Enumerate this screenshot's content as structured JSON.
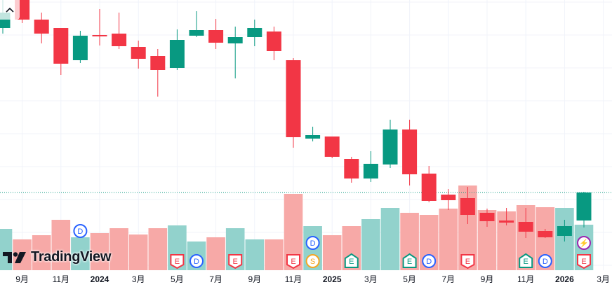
{
  "colors": {
    "up": "#089981",
    "down": "#f23645",
    "vol_up": "#92d2cc",
    "vol_down": "#f7a9a7",
    "grid": "#f0f3fa",
    "last_price": "#089981"
  },
  "chart_data": {
    "type": "candlestick",
    "title": "",
    "note": "price scale not shown; values in relative units",
    "candles": [
      {
        "o": 36.0,
        "h": 40.0,
        "l": 35.2,
        "c": 38.2
      },
      {
        "o": 40.0,
        "h": 40.0,
        "l": 36.7,
        "c": 37.2
      },
      {
        "o": 37.2,
        "h": 38.2,
        "l": 33.8,
        "c": 35.2
      },
      {
        "o": 36.0,
        "h": 36.0,
        "l": 29.3,
        "c": 30.9
      },
      {
        "o": 31.4,
        "h": 35.6,
        "l": 31.0,
        "c": 34.9
      },
      {
        "o": 35.0,
        "h": 38.7,
        "l": 33.5,
        "c": 34.8
      },
      {
        "o": 35.2,
        "h": 38.2,
        "l": 33.0,
        "c": 33.4
      },
      {
        "o": 33.3,
        "h": 34.2,
        "l": 30.2,
        "c": 31.6
      },
      {
        "o": 32.0,
        "h": 33.0,
        "l": 26.2,
        "c": 30.0
      },
      {
        "o": 30.3,
        "h": 35.8,
        "l": 30.0,
        "c": 34.3
      },
      {
        "o": 34.9,
        "h": 38.4,
        "l": 34.7,
        "c": 35.7
      },
      {
        "o": 35.7,
        "h": 37.3,
        "l": 33.0,
        "c": 33.9
      },
      {
        "o": 33.8,
        "h": 36.2,
        "l": 28.8,
        "c": 34.7
      },
      {
        "o": 34.7,
        "h": 37.2,
        "l": 33.4,
        "c": 36.0
      },
      {
        "o": 35.5,
        "h": 36.2,
        "l": 31.4,
        "c": 32.7
      },
      {
        "o": 31.4,
        "h": 31.7,
        "l": 18.9,
        "c": 20.4
      },
      {
        "o": 20.2,
        "h": 21.9,
        "l": 19.8,
        "c": 20.7
      },
      {
        "o": 20.5,
        "h": 20.5,
        "l": 17.4,
        "c": 17.6
      },
      {
        "o": 17.3,
        "h": 17.6,
        "l": 13.9,
        "c": 14.5
      },
      {
        "o": 14.5,
        "h": 18.4,
        "l": 14.0,
        "c": 16.6
      },
      {
        "o": 16.5,
        "h": 22.9,
        "l": 16.0,
        "c": 21.5
      },
      {
        "o": 21.5,
        "h": 22.9,
        "l": 13.5,
        "c": 15.1
      },
      {
        "o": 15.2,
        "h": 16.3,
        "l": 11.1,
        "c": 11.3
      },
      {
        "o": 12.2,
        "h": 13.0,
        "l": 10.0,
        "c": 11.4
      },
      {
        "o": 11.7,
        "h": 13.3,
        "l": 8.0,
        "c": 9.3
      },
      {
        "o": 9.6,
        "h": 10.2,
        "l": 7.6,
        "c": 8.4
      },
      {
        "o": 8.5,
        "h": 10.3,
        "l": 7.8,
        "c": 8.2
      },
      {
        "o": 8.3,
        "h": 10.3,
        "l": 6.0,
        "c": 6.9
      },
      {
        "o": 7.0,
        "h": 7.3,
        "l": 6.0,
        "c": 6.1
      },
      {
        "o": 6.3,
        "h": 8.6,
        "l": 5.5,
        "c": 7.7
      },
      {
        "o": 8.5,
        "h": 12.6,
        "l": 7.5,
        "c": 12.5
      }
    ],
    "volume": [
      59,
      44,
      50,
      72,
      47,
      53,
      60,
      51,
      60,
      64,
      41,
      47,
      60,
      44,
      44,
      109,
      63,
      50,
      63,
      73,
      89,
      82,
      79,
      88,
      121,
      86,
      84,
      93,
      90,
      89,
      65
    ],
    "last_price": 12.5,
    "x_ticks": [
      {
        "i": 1,
        "label": "9月",
        "bold": false
      },
      {
        "i": 3,
        "label": "11月",
        "bold": false
      },
      {
        "i": 5,
        "label": "2024",
        "bold": true
      },
      {
        "i": 7,
        "label": "3月",
        "bold": false
      },
      {
        "i": 9,
        "label": "5月",
        "bold": false
      },
      {
        "i": 11,
        "label": "7月",
        "bold": false
      },
      {
        "i": 13,
        "label": "9月",
        "bold": false
      },
      {
        "i": 15,
        "label": "11月",
        "bold": false
      },
      {
        "i": 17,
        "label": "2025",
        "bold": true
      },
      {
        "i": 19,
        "label": "3月",
        "bold": false
      },
      {
        "i": 21,
        "label": "5月",
        "bold": false
      },
      {
        "i": 23,
        "label": "7月",
        "bold": false
      },
      {
        "i": 25,
        "label": "9月",
        "bold": false
      },
      {
        "i": 27,
        "label": "11月",
        "bold": false
      },
      {
        "i": 29,
        "label": "2026",
        "bold": true
      },
      {
        "i": 31,
        "label": "3月",
        "bold": false
      }
    ],
    "events": [
      {
        "i": 4,
        "row": 0,
        "kind": "dividend",
        "label": "D"
      },
      {
        "i": 9,
        "row": 0,
        "kind": "earnings-red",
        "label": "E"
      },
      {
        "i": 10,
        "row": 0,
        "kind": "dividend",
        "label": "D"
      },
      {
        "i": 12,
        "row": 0,
        "kind": "earnings-red",
        "label": "E"
      },
      {
        "i": 15,
        "row": 0,
        "kind": "earnings-red",
        "label": "E"
      },
      {
        "i": 16,
        "row": 1,
        "kind": "dividend",
        "label": "D"
      },
      {
        "i": 16,
        "row": 0,
        "kind": "split",
        "label": "S"
      },
      {
        "i": 18,
        "row": 0,
        "kind": "earnings-green",
        "label": "E"
      },
      {
        "i": 21,
        "row": 0,
        "kind": "earnings-green",
        "label": "E"
      },
      {
        "i": 22,
        "row": 0,
        "kind": "dividend",
        "label": "D"
      },
      {
        "i": 24,
        "row": 0,
        "kind": "earnings-red",
        "label": "E"
      },
      {
        "i": 27,
        "row": 0,
        "kind": "earnings-green",
        "label": "E"
      },
      {
        "i": 28,
        "row": 0,
        "kind": "dividend",
        "label": "D"
      },
      {
        "i": 30,
        "row": 1,
        "kind": "news",
        "label": "⚡"
      },
      {
        "i": 30,
        "row": 0,
        "kind": "earnings-red",
        "label": "E"
      }
    ]
  },
  "collapse_button": {
    "icon": "chevron-up-icon",
    "label": "^"
  },
  "logo_text": "TradingView"
}
